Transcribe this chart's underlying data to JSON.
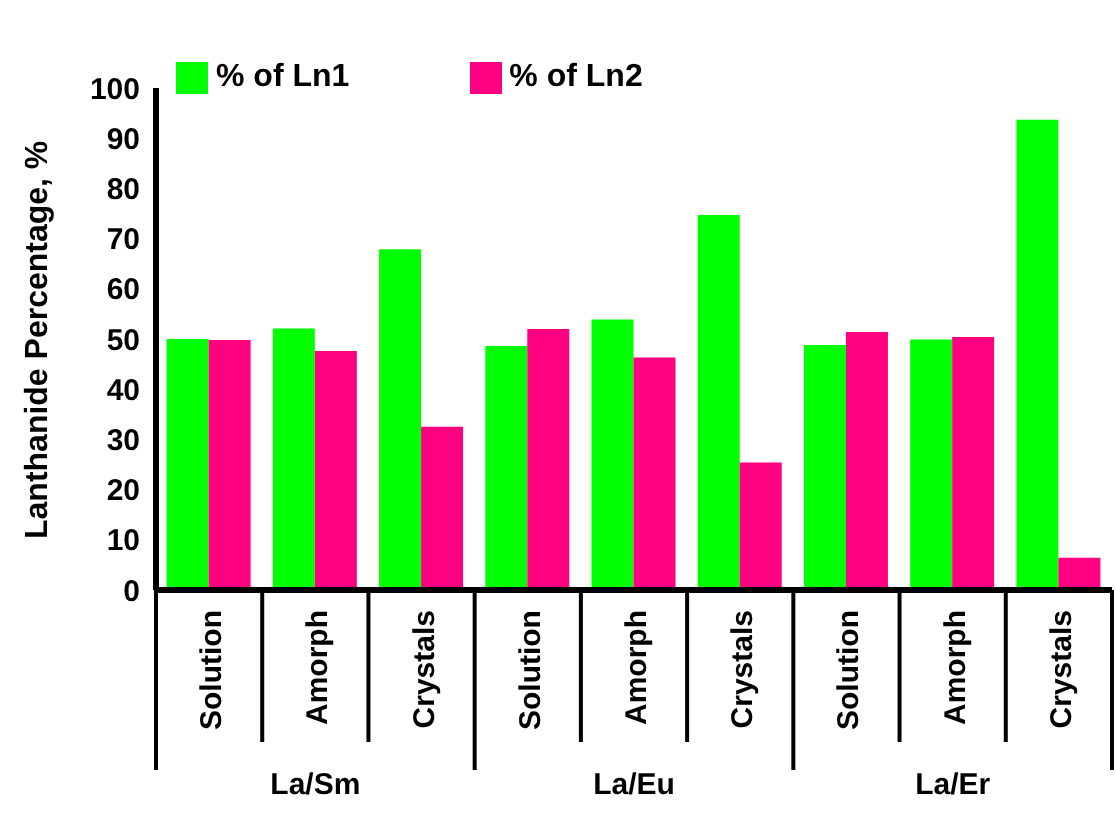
{
  "chart_data": {
    "type": "bar",
    "ylabel": "Lanthanide Percentage, %",
    "categories": [
      "Solution",
      "Amorph",
      "Crystals",
      "Solution",
      "Amorph",
      "Crystals",
      "Solution",
      "Amorph",
      "Crystals"
    ],
    "annotations": [
      "La/Sm",
      "La/Eu",
      "La/Er"
    ],
    "series": [
      {
        "name": "% of Ln1",
        "color": "#00ff00",
        "values": [
          50.0,
          52.1,
          67.9,
          48.6,
          53.9,
          74.7,
          48.8,
          49.9,
          93.7
        ]
      },
      {
        "name": "% of Ln2",
        "color": "#ff0080",
        "values": [
          49.8,
          47.6,
          32.5,
          52.0,
          46.3,
          25.4,
          51.4,
          50.4,
          6.4
        ]
      }
    ],
    "ylim": [
      0,
      100
    ],
    "yticks": [
      0,
      10,
      20,
      30,
      40,
      50,
      60,
      70,
      80,
      90,
      100
    ],
    "grid": false,
    "legend": "top left"
  }
}
